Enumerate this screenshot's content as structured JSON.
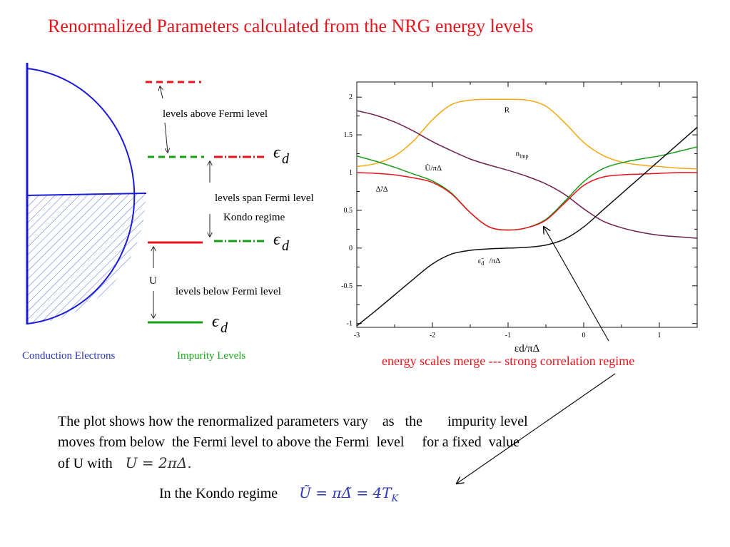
{
  "slide": {
    "title": "Renormalized Parameters calculated from the NRG energy levels",
    "paragraph_lines": [
      "The plot shows how the renormalized parameters vary    as   the       impurity level",
      "moves from below  the Fermi level to above the Fermi  level     for a fixed  value",
      "of U with"
    ],
    "formula_U": "U = 2πΔ.",
    "kondo_text": "In the Kondo regime",
    "formula_kondo": "Ũ = πΔ̃ = 4T",
    "formula_kondo_sub": "K",
    "merge_annotation": "energy scales merge --- strong correlation regime"
  },
  "schematic": {
    "labels": {
      "levels_above": "levels above Fermi level",
      "levels_span": "levels span Fermi level",
      "kondo_regime": "Kondo regime",
      "levels_below": "levels below Fermi level",
      "U": "U",
      "eps_symbol": "ϵ",
      "eps_sub": "d",
      "conduction": "Conduction Electrons",
      "impurity": "Impurity Levels"
    },
    "colors": {
      "red": "#e8141c",
      "green": "#13a013",
      "blue": "#1a1ad8",
      "label_blue": "#2a36b8",
      "label_green": "#1aa81a"
    }
  },
  "chart_data": {
    "type": "line",
    "xlim": [
      -3,
      1.5
    ],
    "ylim": [
      -1.05,
      2.2
    ],
    "xticks": [
      -3,
      -2,
      -1,
      0,
      1
    ],
    "yticks": [
      -1,
      -0.5,
      0,
      0.5,
      1,
      1.5,
      2
    ],
    "xlabel": "εd/πΔ",
    "series": [
      {
        "name": "R",
        "color": "#f5a811",
        "x": [
          -3,
          -2.75,
          -2.5,
          -2.25,
          -2,
          -1.75,
          -1.5,
          -1.25,
          -1,
          -0.75,
          -0.5,
          -0.25,
          0,
          0.25,
          0.5,
          0.75,
          1,
          1.25,
          1.5
        ],
        "y": [
          1.08,
          1.12,
          1.22,
          1.42,
          1.7,
          1.9,
          1.96,
          1.97,
          1.97,
          1.96,
          1.88,
          1.66,
          1.4,
          1.23,
          1.14,
          1.1,
          1.08,
          1.06,
          1.05
        ]
      },
      {
        "name": "nimp",
        "color": "#6d2052",
        "x": [
          -3,
          -2.75,
          -2.5,
          -2.25,
          -2,
          -1.75,
          -1.5,
          -1.25,
          -1,
          -0.75,
          -0.5,
          -0.25,
          0,
          0.25,
          0.5,
          0.75,
          1,
          1.25,
          1.5
        ],
        "y": [
          1.82,
          1.76,
          1.67,
          1.55,
          1.41,
          1.29,
          1.18,
          1.1,
          1.03,
          0.95,
          0.85,
          0.71,
          0.52,
          0.36,
          0.27,
          0.21,
          0.17,
          0.15,
          0.13
        ]
      },
      {
        "name": "Ũ/πΔ",
        "color": "#1a9a1a",
        "x": [
          -3,
          -2.75,
          -2.5,
          -2.25,
          -2,
          -1.75,
          -1.5,
          -1.25,
          -1,
          -0.75,
          -0.5,
          -0.25,
          0,
          0.25,
          0.5,
          0.75,
          1,
          1.25,
          1.5
        ],
        "y": [
          1.22,
          1.15,
          1.07,
          0.98,
          0.89,
          0.73,
          0.47,
          0.28,
          0.24,
          0.27,
          0.38,
          0.62,
          0.88,
          1.05,
          1.13,
          1.18,
          1.22,
          1.28,
          1.34
        ]
      },
      {
        "name": "Δ̃/Δ",
        "color": "#e8141c",
        "x": [
          -3,
          -2.75,
          -2.5,
          -2.25,
          -2,
          -1.75,
          -1.5,
          -1.25,
          -1,
          -0.75,
          -0.5,
          -0.25,
          0,
          0.25,
          0.5,
          0.75,
          1,
          1.25,
          1.5
        ],
        "y": [
          1.0,
          0.99,
          0.97,
          0.93,
          0.87,
          0.72,
          0.47,
          0.28,
          0.24,
          0.27,
          0.37,
          0.6,
          0.83,
          0.94,
          0.97,
          0.98,
          0.99,
          1.0,
          1.0
        ]
      },
      {
        "name": "ε̃d/πΔ",
        "color": "#111111",
        "x": [
          -3,
          -2.75,
          -2.5,
          -2.25,
          -2,
          -1.75,
          -1.5,
          -1.25,
          -1,
          -0.75,
          -0.5,
          -0.25,
          0,
          0.25,
          0.5,
          0.75,
          1,
          1.25,
          1.5
        ],
        "y": [
          -1.03,
          -0.83,
          -0.62,
          -0.41,
          -0.21,
          -0.08,
          -0.03,
          -0.01,
          0.0,
          0.01,
          0.04,
          0.12,
          0.28,
          0.5,
          0.72,
          0.94,
          1.16,
          1.38,
          1.6
        ]
      }
    ],
    "curve_labels": [
      {
        "text": "R",
        "sub": "",
        "x": -1.05,
        "y": 1.8
      },
      {
        "text": "n",
        "sub": "imp",
        "x": -0.9,
        "y": 1.22
      },
      {
        "text": "Ũ/πΔ",
        "sub": "",
        "x": -2.1,
        "y": 1.03
      },
      {
        "text": "Δ̃/Δ",
        "sub": "",
        "x": -2.75,
        "y": 0.75
      },
      {
        "text": "ε̃",
        "sub": "d",
        "x": -1.4,
        "y": -0.2
      },
      {
        "text": "/πΔ",
        "sub": "",
        "x": -1.25,
        "y": -0.2
      }
    ]
  }
}
